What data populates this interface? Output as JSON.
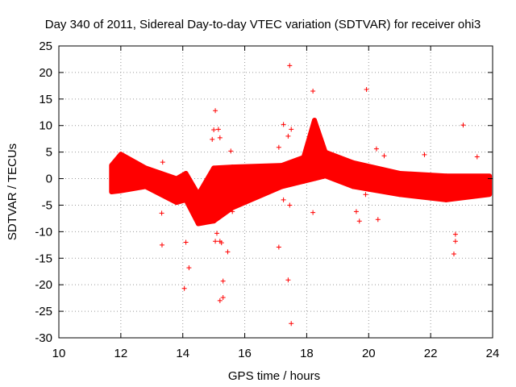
{
  "chart_data": {
    "type": "scatter",
    "title": "Day 340 of 2011, Sidereal Day-to-day VTEC variation (SDTVAR) for receiver ohi3",
    "xlabel": "GPS time / hours",
    "ylabel": "SDTVAR / TECUs",
    "xlim": [
      10,
      24
    ],
    "ylim": [
      -30,
      25
    ],
    "xticks": [
      10,
      12,
      14,
      16,
      18,
      20,
      22,
      24
    ],
    "yticks": [
      -30,
      -25,
      -20,
      -15,
      -10,
      -5,
      0,
      5,
      10,
      15,
      20,
      25
    ],
    "grid": true,
    "marker": "+",
    "series": [
      {
        "name": "SDTVAR",
        "color": "#ff0000",
        "bands": [
          {
            "x": [
              11.7,
              12.0
            ],
            "y_min": [
              -2.5,
              -2.3
            ],
            "y_max": [
              2.5,
              4.6
            ]
          },
          {
            "x": [
              12.0,
              12.8
            ],
            "y_min": [
              -2.3,
              -1.5
            ],
            "y_max": [
              4.6,
              2.0
            ]
          },
          {
            "x": [
              12.8,
              13.8
            ],
            "y_min": [
              -1.5,
              -4.5
            ],
            "y_max": [
              2.0,
              0.0
            ]
          },
          {
            "x": [
              13.8,
              14.1
            ],
            "y_min": [
              -4.5,
              -4.0
            ],
            "y_max": [
              0.0,
              1.0
            ]
          },
          {
            "x": [
              14.1,
              14.5
            ],
            "y_min": [
              -4.0,
              -8.5
            ],
            "y_max": [
              1.0,
              -3.0
            ]
          },
          {
            "x": [
              14.5,
              15.0
            ],
            "y_min": [
              -8.5,
              -8.0
            ],
            "y_max": [
              -3.0,
              2.0
            ]
          },
          {
            "x": [
              15.0,
              15.6
            ],
            "y_min": [
              -8.0,
              -5.5
            ],
            "y_max": [
              2.0,
              2.2
            ]
          },
          {
            "x": [
              15.6,
              17.2
            ],
            "y_min": [
              -5.5,
              -1.5
            ],
            "y_max": [
              2.2,
              2.5
            ]
          },
          {
            "x": [
              17.2,
              17.9
            ],
            "y_min": [
              -1.5,
              -0.5
            ],
            "y_max": [
              2.5,
              4.0
            ]
          },
          {
            "x": [
              17.9,
              18.25
            ],
            "y_min": [
              -0.5,
              0.0
            ],
            "y_max": [
              4.0,
              11.0
            ]
          },
          {
            "x": [
              18.25,
              18.6
            ],
            "y_min": [
              0.0,
              0.5
            ],
            "y_max": [
              11.0,
              5.0
            ]
          },
          {
            "x": [
              18.6,
              19.5
            ],
            "y_min": [
              0.5,
              -1.5
            ],
            "y_max": [
              5.0,
              3.0
            ]
          },
          {
            "x": [
              19.5,
              21.0
            ],
            "y_min": [
              -1.5,
              -3.0
            ],
            "y_max": [
              3.0,
              1.0
            ]
          },
          {
            "x": [
              21.0,
              22.5
            ],
            "y_min": [
              -3.0,
              -4.0
            ],
            "y_max": [
              1.0,
              0.5
            ]
          },
          {
            "x": [
              22.5,
              23.9
            ],
            "y_min": [
              -4.0,
              -3.0
            ],
            "y_max": [
              0.5,
              0.5
            ]
          }
        ],
        "points": [
          [
            17.45,
            21.3
          ],
          [
            19.93,
            16.8
          ],
          [
            15.05,
            12.8
          ],
          [
            23.05,
            10.1
          ],
          [
            17.25,
            10.2
          ],
          [
            15.0,
            9.2
          ],
          [
            15.15,
            9.3
          ],
          [
            17.5,
            9.3
          ],
          [
            15.2,
            7.7
          ],
          [
            14.95,
            7.4
          ],
          [
            17.1,
            5.9
          ],
          [
            20.25,
            5.6
          ],
          [
            21.8,
            4.5
          ],
          [
            20.5,
            4.3
          ],
          [
            23.5,
            4.1
          ],
          [
            13.35,
            3.1
          ],
          [
            15.55,
            5.2
          ],
          [
            17.4,
            8.0
          ],
          [
            18.2,
            16.5
          ],
          [
            13.32,
            -6.5
          ],
          [
            13.33,
            -12.5
          ],
          [
            14.1,
            -12.0
          ],
          [
            14.2,
            -16.8
          ],
          [
            14.05,
            -20.7
          ],
          [
            15.2,
            -11.8
          ],
          [
            15.25,
            -12.1
          ],
          [
            15.05,
            -11.8
          ],
          [
            15.1,
            -10.3
          ],
          [
            15.45,
            -13.8
          ],
          [
            15.2,
            -23.0
          ],
          [
            15.3,
            -22.4
          ],
          [
            15.3,
            -19.3
          ],
          [
            17.1,
            -12.9
          ],
          [
            17.4,
            -19.1
          ],
          [
            17.5,
            -27.3
          ],
          [
            18.2,
            -6.4
          ],
          [
            19.6,
            -6.2
          ],
          [
            19.7,
            -8.0
          ],
          [
            19.9,
            -3.0
          ],
          [
            20.3,
            -7.7
          ],
          [
            22.8,
            -10.5
          ],
          [
            22.75,
            -14.2
          ],
          [
            22.8,
            -11.8
          ],
          [
            17.45,
            -5.0
          ],
          [
            17.25,
            -4.0
          ],
          [
            16.55,
            -2.0
          ],
          [
            15.6,
            -6.2
          ],
          [
            23.05,
            -3.5
          ]
        ]
      }
    ]
  }
}
